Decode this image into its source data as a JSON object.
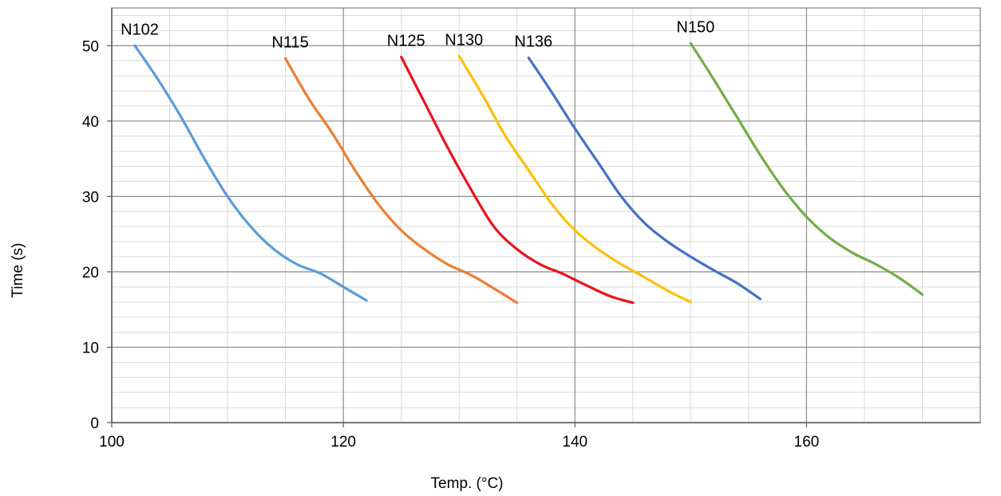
{
  "chart_data": {
    "type": "line",
    "title": "",
    "xlabel": "Temp. (°C)",
    "ylabel": "Time (s)",
    "xlim": [
      100,
      175
    ],
    "ylim": [
      0,
      55
    ],
    "xticks": [
      100,
      120,
      140,
      160
    ],
    "yticks": [
      0,
      10,
      20,
      30,
      40,
      50
    ],
    "x_minor_step": 5,
    "y_minor_step": 2,
    "grid": true,
    "legend": "none",
    "series": [
      {
        "name": "N102",
        "color": "#5B9BD5",
        "points": [
          [
            102,
            50
          ],
          [
            104,
            45.5
          ],
          [
            106,
            40.5
          ],
          [
            108,
            35
          ],
          [
            110,
            30
          ],
          [
            112,
            26
          ],
          [
            114,
            23
          ],
          [
            116,
            21
          ],
          [
            118,
            19.8
          ],
          [
            120,
            18
          ],
          [
            122,
            16.2
          ]
        ]
      },
      {
        "name": "N115",
        "color": "#ED7D31",
        "points": [
          [
            115,
            48.3
          ],
          [
            117,
            43
          ],
          [
            119,
            38.5
          ],
          [
            121,
            33.5
          ],
          [
            123,
            29
          ],
          [
            125,
            25.5
          ],
          [
            127,
            23
          ],
          [
            129,
            21
          ],
          [
            131,
            19.6
          ],
          [
            133,
            17.8
          ],
          [
            135,
            15.9
          ]
        ]
      },
      {
        "name": "N125",
        "color": "#E8141B",
        "points": [
          [
            125,
            48.5
          ],
          [
            127,
            42.5
          ],
          [
            129,
            36.5
          ],
          [
            131,
            31
          ],
          [
            133,
            26
          ],
          [
            135,
            23
          ],
          [
            137,
            21
          ],
          [
            139,
            19.7
          ],
          [
            141,
            18.2
          ],
          [
            143,
            16.8
          ],
          [
            145,
            15.9
          ]
        ]
      },
      {
        "name": "N130",
        "color": "#FFC000",
        "points": [
          [
            130,
            48.6
          ],
          [
            132,
            43.5
          ],
          [
            134,
            38
          ],
          [
            136,
            33.5
          ],
          [
            138,
            29
          ],
          [
            140,
            25.5
          ],
          [
            142,
            23
          ],
          [
            144,
            21
          ],
          [
            146,
            19.3
          ],
          [
            148,
            17.5
          ],
          [
            150,
            16
          ]
        ]
      },
      {
        "name": "N136",
        "color": "#4472C4",
        "points": [
          [
            136,
            48.4
          ],
          [
            138,
            43.8
          ],
          [
            140,
            39
          ],
          [
            142,
            34.5
          ],
          [
            144,
            30
          ],
          [
            146,
            26.5
          ],
          [
            148,
            24
          ],
          [
            150,
            22
          ],
          [
            152,
            20.2
          ],
          [
            154,
            18.5
          ],
          [
            156,
            16.4
          ]
        ]
      },
      {
        "name": "N150",
        "color": "#70AD47",
        "points": [
          [
            150,
            50.3
          ],
          [
            152,
            45.5
          ],
          [
            154,
            40.5
          ],
          [
            156,
            35.5
          ],
          [
            158,
            31
          ],
          [
            160,
            27.3
          ],
          [
            162,
            24.5
          ],
          [
            164,
            22.5
          ],
          [
            166,
            21
          ],
          [
            168,
            19.2
          ],
          [
            170,
            17
          ]
        ]
      }
    ]
  }
}
